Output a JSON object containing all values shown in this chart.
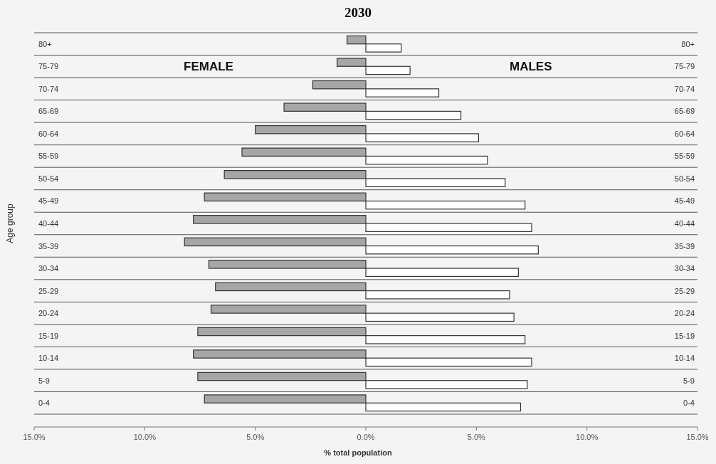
{
  "chart_data": {
    "type": "bar",
    "orientation": "horizontal",
    "title": "2030",
    "xlabel": "% total population",
    "ylabel": "Age group",
    "categories": [
      "80+",
      "75-79",
      "70-74",
      "65-69",
      "60-64",
      "55-59",
      "50-54",
      "45-49",
      "40-44",
      "35-39",
      "30-34",
      "25-29",
      "20-24",
      "15-19",
      "10-14",
      "5-9",
      "0-4"
    ],
    "series": [
      {
        "color": "#a6a6a6",
        "values": [
          -0.85,
          -1.3,
          -2.4,
          -3.7,
          -5.0,
          -5.6,
          -6.4,
          -7.3,
          -7.8,
          -8.2,
          -7.1,
          -6.8,
          -7.0,
          -7.6,
          -7.8,
          -7.6,
          -7.3
        ]
      },
      {
        "color": "#ffffff",
        "values": [
          1.6,
          2.0,
          3.3,
          4.3,
          5.1,
          5.5,
          6.3,
          7.2,
          7.5,
          7.8,
          6.9,
          6.5,
          6.7,
          7.2,
          7.5,
          7.3,
          7.0
        ]
      }
    ],
    "xlim": [
      -15,
      15
    ],
    "xticks": [
      {
        "value": -15,
        "label": "15.0%"
      },
      {
        "value": -10,
        "label": "10.0%"
      },
      {
        "value": -5,
        "label": "5.0%"
      },
      {
        "value": 0,
        "label": "0.0%"
      },
      {
        "value": 5,
        "label": "5.0%"
      },
      {
        "value": 10,
        "label": "10.0%"
      },
      {
        "value": 15,
        "label": "15.0%"
      }
    ],
    "annotations": [
      "FEMALE",
      "MALES"
    ],
    "grid": "y",
    "legend": false
  }
}
